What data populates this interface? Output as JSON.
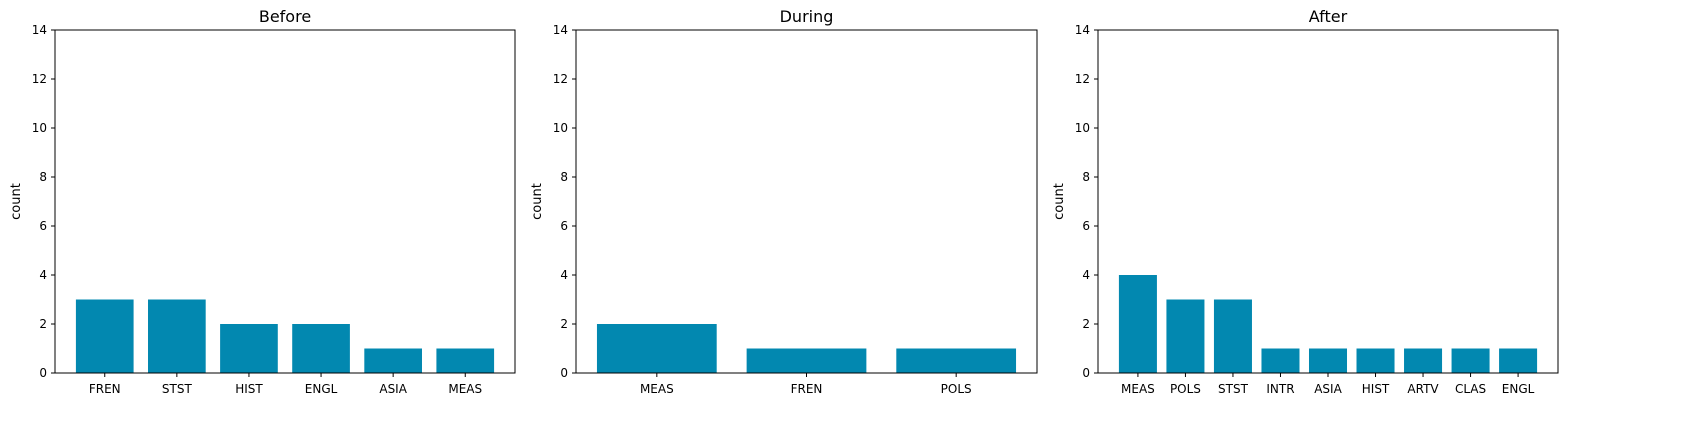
{
  "colors": {
    "bar": "#0288b0"
  },
  "chart_data": [
    {
      "type": "bar",
      "title": "Before",
      "xlabel": "",
      "ylabel": "count",
      "ylim": [
        0,
        14
      ],
      "yticks": [
        0,
        2,
        4,
        6,
        8,
        10,
        12,
        14
      ],
      "grid": false,
      "categories": [
        "FREN",
        "STST",
        "HIST",
        "ENGL",
        "ASIA",
        "MEAS"
      ],
      "values": [
        3,
        3,
        2,
        2,
        1,
        1
      ]
    },
    {
      "type": "bar",
      "title": "During",
      "xlabel": "",
      "ylabel": "count",
      "ylim": [
        0,
        14
      ],
      "yticks": [
        0,
        2,
        4,
        6,
        8,
        10,
        12,
        14
      ],
      "grid": false,
      "categories": [
        "MEAS",
        "FREN",
        "POLS"
      ],
      "values": [
        2,
        1,
        1
      ]
    },
    {
      "type": "bar",
      "title": "After",
      "xlabel": "",
      "ylabel": "count",
      "ylim": [
        0,
        14
      ],
      "yticks": [
        0,
        2,
        4,
        6,
        8,
        10,
        12,
        14
      ],
      "grid": false,
      "categories": [
        "MEAS",
        "POLS",
        "STST",
        "INTR",
        "ASIA",
        "HIST",
        "ARTV",
        "CLAS",
        "ENGL"
      ],
      "values": [
        4,
        3,
        3,
        1,
        1,
        1,
        1,
        1,
        1
      ]
    }
  ]
}
